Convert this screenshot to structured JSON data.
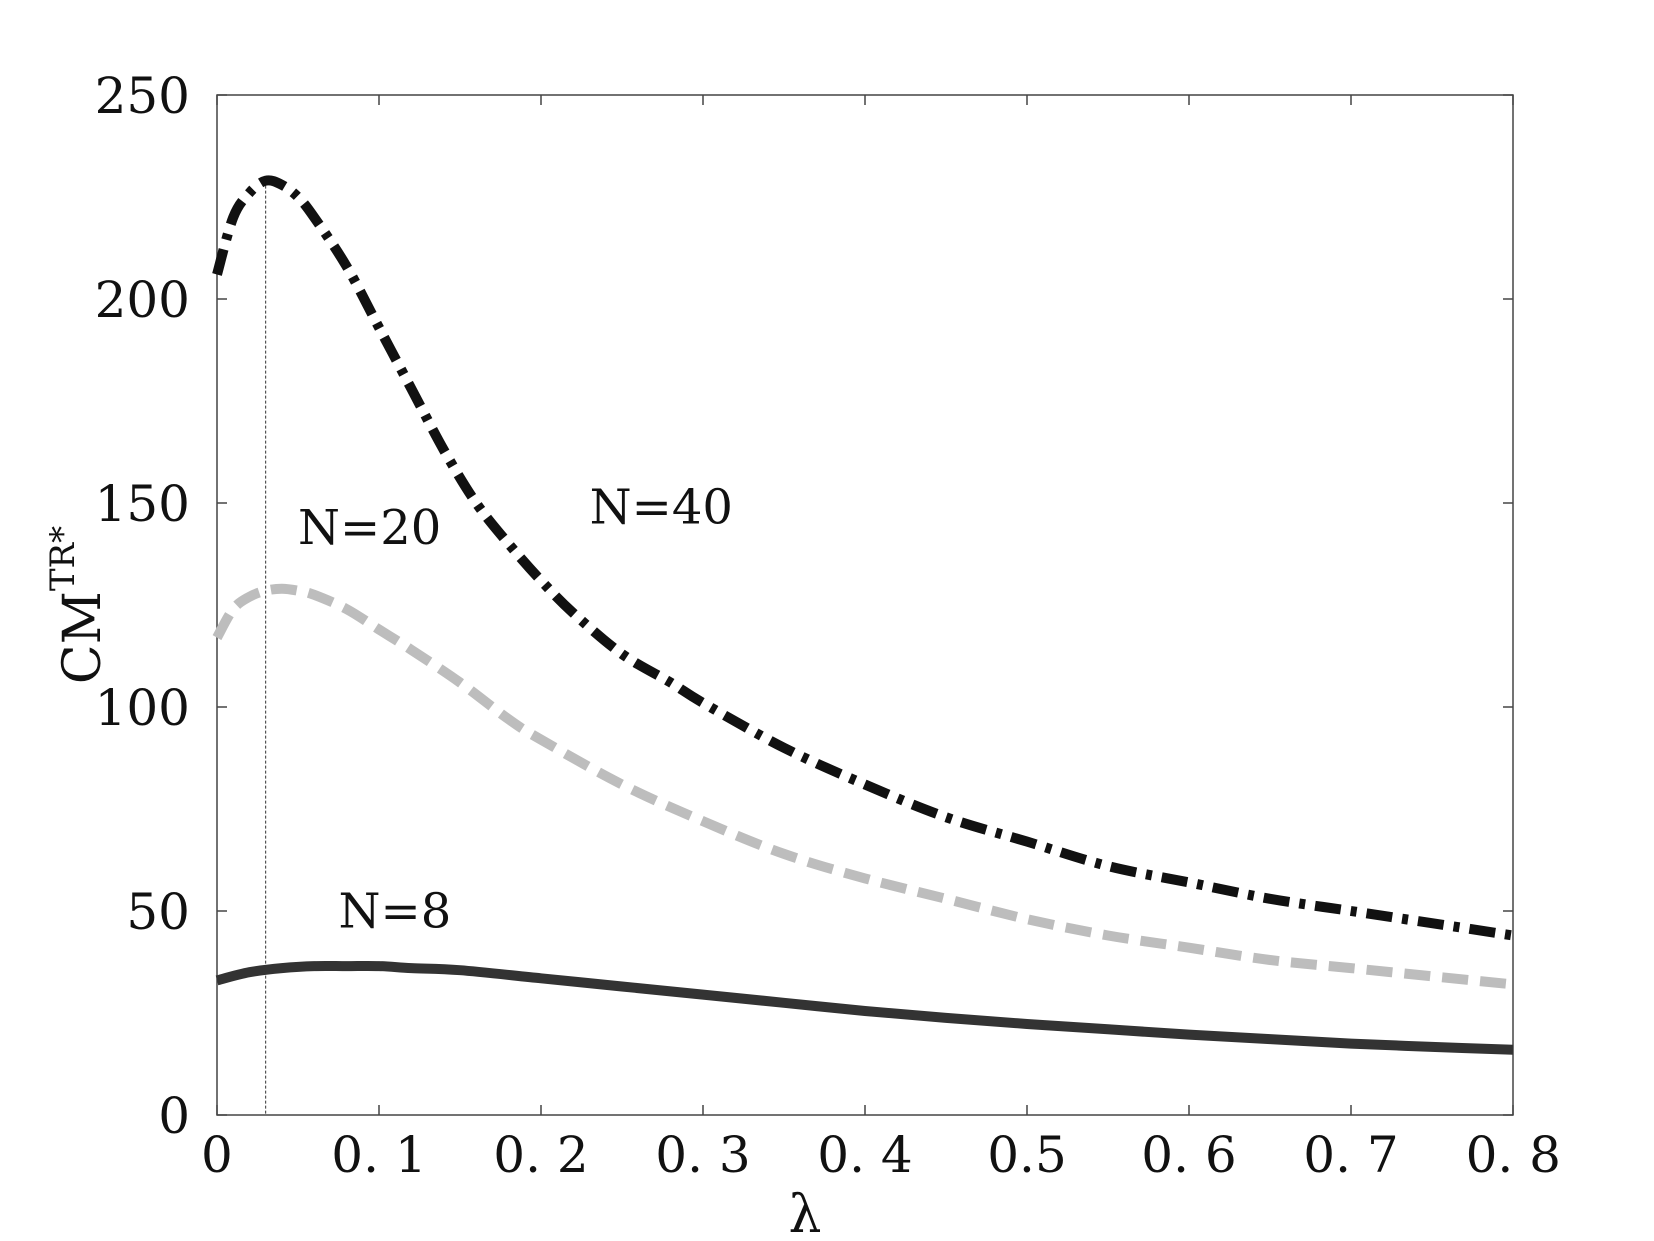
{
  "chart_data": {
    "type": "line",
    "title": "",
    "xlabel": "λ",
    "ylabel": "CM",
    "ylabel_superscript": "TR*",
    "xlim": [
      0,
      0.8
    ],
    "ylim": [
      0,
      250
    ],
    "grid": false,
    "x_ticks": [
      {
        "value": 0,
        "label": "0"
      },
      {
        "value": 0.1,
        "label": "0. 1"
      },
      {
        "value": 0.2,
        "label": "0. 2"
      },
      {
        "value": 0.3,
        "label": "0. 3"
      },
      {
        "value": 0.4,
        "label": "0. 4"
      },
      {
        "value": 0.5,
        "label": "0.5"
      },
      {
        "value": 0.6,
        "label": "0. 6"
      },
      {
        "value": 0.7,
        "label": "0. 7"
      },
      {
        "value": 0.8,
        "label": "0. 8"
      }
    ],
    "y_ticks": [
      {
        "value": 0,
        "label": "0"
      },
      {
        "value": 50,
        "label": "50"
      },
      {
        "value": 100,
        "label": "100"
      },
      {
        "value": 150,
        "label": "150"
      },
      {
        "value": 200,
        "label": "200"
      },
      {
        "value": 250,
        "label": "250"
      }
    ],
    "reference_line_x": 0.03,
    "series": [
      {
        "name": "N=40",
        "color": "#111111",
        "style": "dashdot",
        "label_anchor": {
          "x": 0.23,
          "y": 145
        },
        "x": [
          0,
          0.01,
          0.02,
          0.03,
          0.04,
          0.05,
          0.06,
          0.08,
          0.1,
          0.12,
          0.14,
          0.16,
          0.18,
          0.2,
          0.22,
          0.25,
          0.28,
          0.3,
          0.35,
          0.4,
          0.45,
          0.5,
          0.55,
          0.6,
          0.65,
          0.7,
          0.75,
          0.8
        ],
        "y": [
          206,
          220,
          226,
          229,
          228,
          225,
          220,
          208,
          193,
          178,
          163,
          150,
          140,
          131,
          123,
          113,
          106,
          101,
          90,
          81,
          73,
          67,
          61,
          57,
          53,
          50,
          47,
          44
        ]
      },
      {
        "name": "N=20",
        "color": "#bdbdbd",
        "style": "dashed",
        "label_anchor": {
          "x": 0.05,
          "y": 140
        },
        "x": [
          0,
          0.01,
          0.02,
          0.03,
          0.04,
          0.05,
          0.06,
          0.08,
          0.1,
          0.12,
          0.15,
          0.18,
          0.2,
          0.25,
          0.3,
          0.35,
          0.4,
          0.45,
          0.5,
          0.55,
          0.6,
          0.65,
          0.7,
          0.75,
          0.8
        ],
        "y": [
          117,
          124,
          127,
          128.5,
          129,
          128.5,
          127.5,
          124,
          119,
          114,
          106,
          97,
          92,
          81,
          72,
          64,
          58,
          53,
          48,
          44,
          41,
          38,
          36,
          34,
          32
        ]
      },
      {
        "name": "N=8",
        "color": "#333333",
        "style": "solid",
        "label_anchor": {
          "x": 0.075,
          "y": 46
        },
        "x": [
          0,
          0.02,
          0.04,
          0.06,
          0.08,
          0.1,
          0.12,
          0.15,
          0.2,
          0.25,
          0.3,
          0.35,
          0.4,
          0.45,
          0.5,
          0.55,
          0.6,
          0.65,
          0.7,
          0.75,
          0.8
        ],
        "y": [
          33,
          35,
          36,
          36.5,
          36.5,
          36.5,
          36,
          35.5,
          33.5,
          31.5,
          29.5,
          27.5,
          25.5,
          23.8,
          22.3,
          21,
          19.7,
          18.6,
          17.5,
          16.7,
          16
        ]
      }
    ]
  }
}
